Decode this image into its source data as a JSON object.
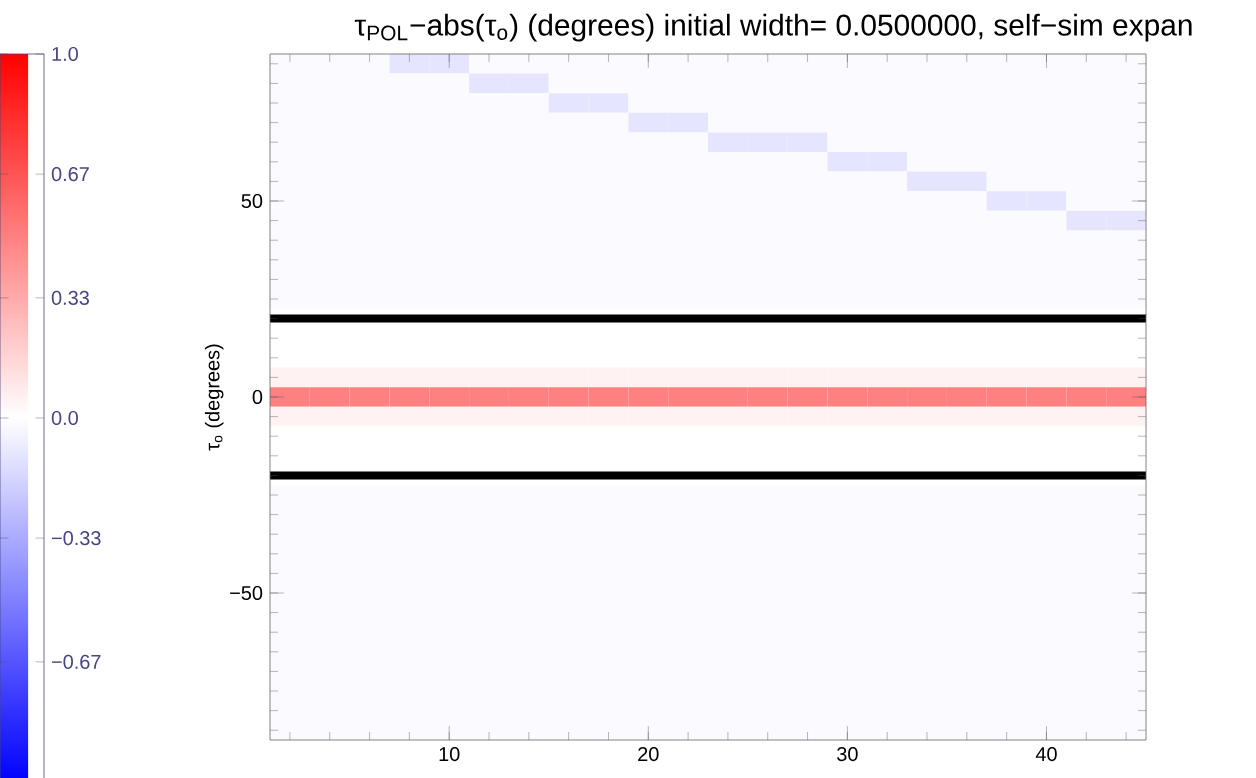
{
  "chart_data": {
    "type": "heatmap",
    "title": "τ$_{POL}$−abs(τ$_{o}$) (degrees)  initial width= 0.0500000, self−sim expan",
    "ylabel": "τ$_{o}$ (degrees)",
    "categories": [
      null,
      null,
      null,
      null,
      "10",
      null,
      null,
      null,
      null,
      "20",
      null,
      null,
      null,
      null,
      "30",
      null,
      null,
      null,
      null,
      "40",
      null,
      null
    ],
    "y_categories": [
      null,
      null,
      null,
      null,
      null,
      null,
      null,
      "50",
      null,
      null,
      null,
      null,
      null,
      null,
      null,
      null,
      null,
      "0",
      null,
      null,
      null,
      null,
      null,
      null,
      null,
      null,
      null,
      "−50",
      null,
      null,
      null,
      null,
      null,
      null,
      null
    ],
    "clim": [
      -1,
      1
    ],
    "cticks": [
      {
        "value": 1,
        "label": "1.0"
      },
      {
        "value": 0.67,
        "label": "0.67"
      },
      {
        "value": 0.33,
        "label": "0.33"
      },
      {
        "value": 0,
        "label": "0.0"
      },
      {
        "value": -0.33,
        "label": "−0.33"
      },
      {
        "value": -0.67,
        "label": "−0.67"
      }
    ],
    "cells": [
      [
        -0.02,
        -0.02,
        -0.02,
        -0.1,
        -0.1,
        -0.02,
        -0.02,
        -0.02,
        -0.02,
        -0.02,
        -0.02,
        -0.02,
        -0.02,
        -0.02,
        -0.02,
        -0.02,
        -0.02,
        -0.02,
        -0.02,
        -0.02,
        -0.02,
        -0.02
      ],
      [
        -0.02,
        -0.02,
        -0.02,
        -0.02,
        -0.02,
        -0.1,
        -0.1,
        -0.02,
        -0.02,
        -0.02,
        -0.02,
        -0.02,
        -0.02,
        -0.02,
        -0.02,
        -0.02,
        -0.02,
        -0.02,
        -0.02,
        -0.02,
        -0.02,
        -0.02
      ],
      [
        -0.02,
        -0.02,
        -0.02,
        -0.02,
        -0.02,
        -0.02,
        -0.02,
        -0.1,
        -0.1,
        -0.02,
        -0.02,
        -0.02,
        -0.02,
        -0.02,
        -0.02,
        -0.02,
        -0.02,
        -0.02,
        -0.02,
        -0.02,
        -0.02,
        -0.02
      ],
      [
        -0.02,
        -0.02,
        -0.02,
        -0.02,
        -0.02,
        -0.02,
        -0.02,
        -0.02,
        -0.02,
        -0.1,
        -0.1,
        -0.02,
        -0.02,
        -0.02,
        -0.02,
        -0.02,
        -0.02,
        -0.02,
        -0.02,
        -0.02,
        -0.02,
        -0.02
      ],
      [
        -0.02,
        -0.02,
        -0.02,
        -0.02,
        -0.02,
        -0.02,
        -0.02,
        -0.02,
        -0.02,
        -0.02,
        -0.02,
        -0.1,
        -0.1,
        -0.1,
        -0.02,
        -0.02,
        -0.02,
        -0.02,
        -0.02,
        -0.02,
        -0.02,
        -0.02
      ],
      [
        -0.02,
        -0.02,
        -0.02,
        -0.02,
        -0.02,
        -0.02,
        -0.02,
        -0.02,
        -0.02,
        -0.02,
        -0.02,
        -0.02,
        -0.02,
        -0.02,
        -0.1,
        -0.1,
        -0.02,
        -0.02,
        -0.02,
        -0.02,
        -0.02,
        -0.02
      ],
      [
        -0.02,
        -0.02,
        -0.02,
        -0.02,
        -0.02,
        -0.02,
        -0.02,
        -0.02,
        -0.02,
        -0.02,
        -0.02,
        -0.02,
        -0.02,
        -0.02,
        -0.02,
        -0.02,
        -0.1,
        -0.1,
        -0.02,
        -0.02,
        -0.02,
        -0.02
      ],
      [
        -0.02,
        -0.02,
        -0.02,
        -0.02,
        -0.02,
        -0.02,
        -0.02,
        -0.02,
        -0.02,
        -0.02,
        -0.02,
        -0.02,
        -0.02,
        -0.02,
        -0.02,
        -0.02,
        -0.02,
        -0.02,
        -0.1,
        -0.1,
        -0.02,
        -0.02
      ],
      [
        -0.02,
        -0.02,
        -0.02,
        -0.02,
        -0.02,
        -0.02,
        -0.02,
        -0.02,
        -0.02,
        -0.02,
        -0.02,
        -0.02,
        -0.02,
        -0.02,
        -0.02,
        -0.02,
        -0.02,
        -0.02,
        -0.02,
        -0.02,
        -0.1,
        -0.1
      ],
      [
        -0.02,
        -0.02,
        -0.02,
        -0.02,
        -0.02,
        -0.02,
        -0.02,
        -0.02,
        -0.02,
        -0.02,
        -0.02,
        -0.02,
        -0.02,
        -0.02,
        -0.02,
        -0.02,
        -0.02,
        -0.02,
        -0.02,
        -0.02,
        -0.02,
        -0.02
      ],
      [
        -0.02,
        -0.02,
        -0.02,
        -0.02,
        -0.02,
        -0.02,
        -0.02,
        -0.02,
        -0.02,
        -0.02,
        -0.02,
        -0.02,
        -0.02,
        -0.02,
        -0.02,
        -0.02,
        -0.02,
        -0.02,
        -0.02,
        -0.02,
        -0.02,
        -0.02
      ],
      [
        -0.02,
        -0.02,
        -0.02,
        -0.02,
        -0.02,
        -0.02,
        -0.02,
        -0.02,
        -0.02,
        -0.02,
        -0.02,
        -0.02,
        -0.02,
        -0.02,
        -0.02,
        -0.02,
        -0.02,
        -0.02,
        -0.02,
        -0.02,
        -0.02,
        -0.02
      ],
      [
        -0.02,
        -0.02,
        -0.02,
        -0.02,
        -0.02,
        -0.02,
        -0.02,
        -0.02,
        -0.02,
        -0.02,
        -0.02,
        -0.02,
        -0.02,
        -0.02,
        -0.02,
        -0.02,
        -0.02,
        -0.02,
        -0.02,
        -0.02,
        -0.02,
        -0.02
      ],
      [
        0,
        0,
        0,
        0,
        0,
        0,
        0,
        0,
        0,
        0,
        0,
        0,
        0,
        0,
        0,
        0,
        0,
        0,
        0,
        0,
        0,
        0
      ],
      [
        0,
        0,
        0,
        0,
        0,
        0,
        0,
        0,
        0,
        0,
        0,
        0,
        0,
        0,
        0,
        0,
        0,
        0,
        0,
        0,
        0,
        0
      ],
      [
        0,
        0,
        0,
        0,
        0,
        0,
        0,
        0,
        0,
        0,
        0,
        0,
        0,
        0,
        0,
        0,
        0,
        0,
        0,
        0,
        0,
        0
      ],
      [
        0.05,
        0.05,
        0.05,
        0.05,
        0.05,
        0.05,
        0.05,
        0.05,
        0.05,
        0.05,
        0.05,
        0.05,
        0.05,
        0.05,
        0.05,
        0.05,
        0.05,
        0.05,
        0.05,
        0.05,
        0.05,
        0.05
      ],
      [
        0.5,
        0.5,
        0.5,
        0.5,
        0.5,
        0.5,
        0.5,
        0.5,
        0.5,
        0.5,
        0.5,
        0.5,
        0.5,
        0.5,
        0.5,
        0.5,
        0.5,
        0.5,
        0.5,
        0.5,
        0.5,
        0.5
      ],
      [
        0.05,
        0.05,
        0.05,
        0.05,
        0.05,
        0.05,
        0.05,
        0.05,
        0.05,
        0.05,
        0.05,
        0.05,
        0.05,
        0.05,
        0.05,
        0.05,
        0.05,
        0.05,
        0.05,
        0.05,
        0.05,
        0.05
      ],
      [
        0,
        0,
        0,
        0,
        0,
        0,
        0,
        0,
        0,
        0,
        0,
        0,
        0,
        0,
        0,
        0,
        0,
        0,
        0,
        0,
        0,
        0
      ],
      [
        0,
        0,
        0,
        0,
        0,
        0,
        0,
        0,
        0,
        0,
        0,
        0,
        0,
        0,
        0,
        0,
        0,
        0,
        0,
        0,
        0,
        0
      ],
      [
        0,
        0,
        0,
        0,
        0,
        0,
        0,
        0,
        0,
        0,
        0,
        0,
        0,
        0,
        0,
        0,
        0,
        0,
        0,
        0,
        0,
        0
      ],
      [
        -0.02,
        -0.02,
        -0.02,
        -0.02,
        -0.02,
        -0.02,
        -0.02,
        -0.02,
        -0.02,
        -0.02,
        -0.02,
        -0.02,
        -0.02,
        -0.02,
        -0.02,
        -0.02,
        -0.02,
        -0.02,
        -0.02,
        -0.02,
        -0.02,
        -0.02
      ],
      [
        -0.02,
        -0.02,
        -0.02,
        -0.02,
        -0.02,
        -0.02,
        -0.02,
        -0.02,
        -0.02,
        -0.02,
        -0.02,
        -0.02,
        -0.02,
        -0.02,
        -0.02,
        -0.02,
        -0.02,
        -0.02,
        -0.02,
        -0.02,
        -0.02,
        -0.02
      ],
      [
        -0.02,
        -0.02,
        -0.02,
        -0.02,
        -0.02,
        -0.02,
        -0.02,
        -0.02,
        -0.02,
        -0.02,
        -0.02,
        -0.02,
        -0.02,
        -0.02,
        -0.02,
        -0.02,
        -0.02,
        -0.02,
        -0.02,
        -0.02,
        -0.02,
        -0.02
      ],
      [
        -0.02,
        -0.02,
        -0.02,
        -0.02,
        -0.02,
        -0.02,
        -0.02,
        -0.02,
        -0.02,
        -0.02,
        -0.02,
        -0.02,
        -0.02,
        -0.02,
        -0.02,
        -0.02,
        -0.02,
        -0.02,
        -0.02,
        -0.02,
        -0.02,
        -0.02
      ],
      [
        -0.02,
        -0.02,
        -0.02,
        -0.02,
        -0.02,
        -0.02,
        -0.02,
        -0.02,
        -0.02,
        -0.02,
        -0.02,
        -0.02,
        -0.02,
        -0.02,
        -0.02,
        -0.02,
        -0.02,
        -0.02,
        -0.02,
        -0.02,
        -0.02,
        -0.02
      ],
      [
        -0.02,
        -0.02,
        -0.02,
        -0.02,
        -0.02,
        -0.02,
        -0.02,
        -0.02,
        -0.02,
        -0.02,
        -0.02,
        -0.02,
        -0.02,
        -0.02,
        -0.02,
        -0.02,
        -0.02,
        -0.02,
        -0.02,
        -0.02,
        -0.02,
        -0.02
      ],
      [
        -0.02,
        -0.02,
        -0.02,
        -0.02,
        -0.02,
        -0.02,
        -0.02,
        -0.02,
        -0.02,
        -0.02,
        -0.02,
        -0.02,
        -0.02,
        -0.02,
        -0.02,
        -0.02,
        -0.02,
        -0.02,
        -0.02,
        -0.02,
        -0.02,
        -0.02
      ],
      [
        -0.02,
        -0.02,
        -0.02,
        -0.02,
        -0.02,
        -0.02,
        -0.02,
        -0.02,
        -0.02,
        -0.02,
        -0.02,
        -0.02,
        -0.02,
        -0.02,
        -0.02,
        -0.02,
        -0.02,
        -0.02,
        -0.02,
        -0.02,
        -0.02,
        -0.02
      ],
      [
        -0.02,
        -0.02,
        -0.02,
        -0.02,
        -0.02,
        -0.02,
        -0.02,
        -0.02,
        -0.02,
        -0.02,
        -0.02,
        -0.02,
        -0.02,
        -0.02,
        -0.02,
        -0.02,
        -0.02,
        -0.02,
        -0.02,
        -0.02,
        -0.02,
        -0.02
      ],
      [
        -0.02,
        -0.02,
        -0.02,
        -0.02,
        -0.02,
        -0.02,
        -0.02,
        -0.02,
        -0.02,
        -0.02,
        -0.02,
        -0.02,
        -0.02,
        -0.02,
        -0.02,
        -0.02,
        -0.02,
        -0.02,
        -0.02,
        -0.02,
        -0.02,
        -0.02
      ],
      [
        -0.02,
        -0.02,
        -0.02,
        -0.02,
        -0.02,
        -0.02,
        -0.02,
        -0.02,
        -0.02,
        -0.02,
        -0.02,
        -0.02,
        -0.02,
        -0.02,
        -0.02,
        -0.02,
        -0.02,
        -0.02,
        -0.02,
        -0.02,
        -0.02,
        -0.02
      ],
      [
        -0.02,
        -0.02,
        -0.02,
        -0.02,
        -0.02,
        -0.02,
        -0.02,
        -0.02,
        -0.02,
        -0.02,
        -0.02,
        -0.02,
        -0.02,
        -0.02,
        -0.02,
        -0.02,
        -0.02,
        -0.02,
        -0.02,
        -0.02,
        -0.02,
        -0.02
      ],
      [
        -0.02,
        -0.02,
        -0.02,
        -0.02,
        -0.02,
        -0.02,
        -0.02,
        -0.02,
        -0.02,
        -0.02,
        -0.02,
        -0.02,
        -0.02,
        -0.02,
        -0.02,
        -0.02,
        -0.02,
        -0.02,
        -0.02,
        -0.02,
        -0.02,
        -0.02
      ]
    ]
  }
}
